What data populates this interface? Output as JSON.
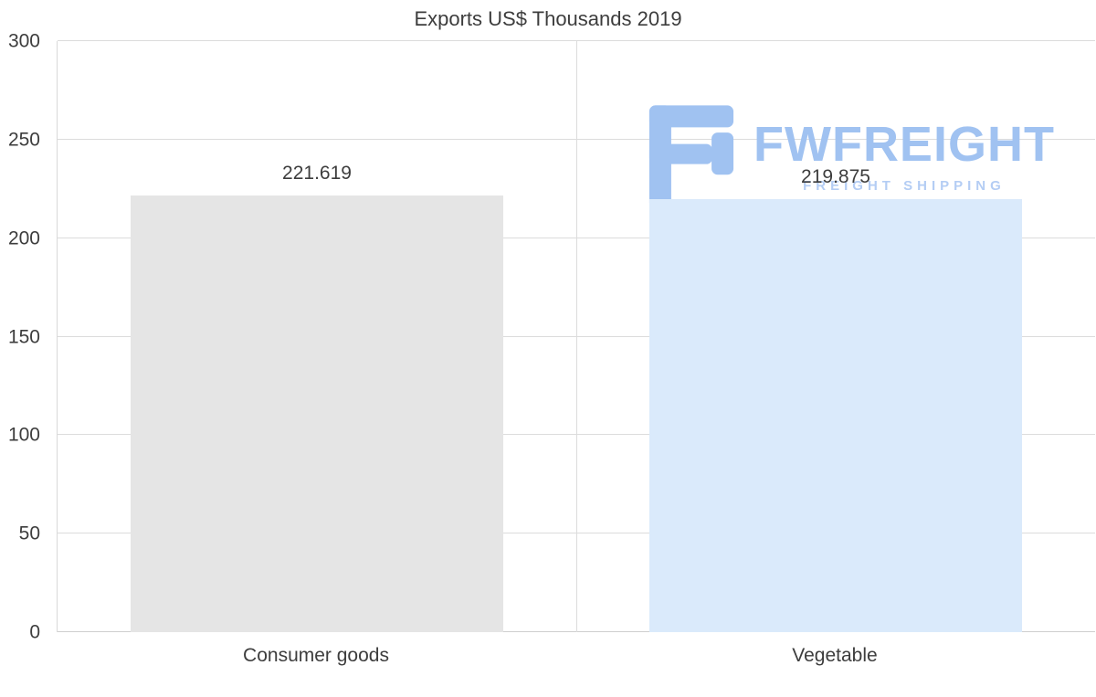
{
  "chart_data": {
    "type": "bar",
    "title": "Exports US$ Thousands 2019",
    "categories": [
      "Consumer goods",
      "Vegetable"
    ],
    "values": [
      221.619,
      219.875
    ],
    "value_labels": [
      "221.619",
      "219.875"
    ],
    "bar_colors": [
      "#e5e5e5",
      "#daeafb"
    ],
    "ylim": [
      0,
      300
    ],
    "yticks": [
      0,
      50,
      100,
      150,
      200,
      250,
      300
    ],
    "grid": true,
    "legend": false,
    "xlabel": "",
    "ylabel": ""
  },
  "watermark": {
    "title": "FWFREIGHT",
    "subtitle": "FREIGHT SHIPPING",
    "icon": "fwfreight-logo-icon",
    "color": "#a0c2f1"
  }
}
